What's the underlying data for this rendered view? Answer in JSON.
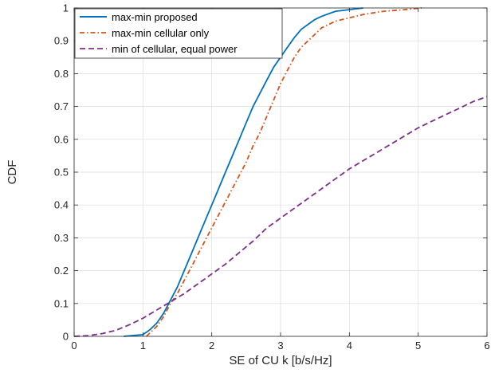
{
  "chart_data": {
    "type": "line",
    "title": "",
    "xlabel": "SE of CU k [b/s/Hz]",
    "ylabel": "CDF",
    "xlim": [
      0,
      6
    ],
    "ylim": [
      0,
      1
    ],
    "xticks": [
      0,
      1,
      2,
      3,
      4,
      5,
      6
    ],
    "yticks": [
      0,
      0.1,
      0.2,
      0.3,
      0.4,
      0.5,
      0.6,
      0.7,
      0.8,
      0.9,
      1
    ],
    "grid": true,
    "legend_position": "top-left",
    "series": [
      {
        "name": "max-min proposed",
        "color": "#0072BD",
        "style": "solid",
        "x": [
          0.72,
          1.0,
          1.1,
          1.2,
          1.3,
          1.4,
          1.5,
          1.6,
          1.7,
          1.8,
          1.9,
          2.0,
          2.1,
          2.2,
          2.3,
          2.4,
          2.5,
          2.6,
          2.7,
          2.8,
          2.9,
          3.0,
          3.1,
          3.2,
          3.3,
          3.4,
          3.5,
          3.6,
          3.8,
          4.0,
          4.2
        ],
        "y": [
          0.0,
          0.005,
          0.02,
          0.04,
          0.07,
          0.11,
          0.15,
          0.2,
          0.25,
          0.3,
          0.35,
          0.4,
          0.45,
          0.5,
          0.55,
          0.6,
          0.65,
          0.7,
          0.74,
          0.78,
          0.82,
          0.85,
          0.88,
          0.91,
          0.935,
          0.95,
          0.965,
          0.975,
          0.99,
          0.995,
          1.0
        ]
      },
      {
        "name": "max-min cellular only",
        "color": "#D95319",
        "style": "dashdot",
        "x": [
          1.05,
          1.1,
          1.2,
          1.3,
          1.4,
          1.5,
          1.6,
          1.7,
          1.8,
          1.9,
          2.0,
          2.1,
          2.2,
          2.3,
          2.4,
          2.5,
          2.6,
          2.7,
          2.8,
          2.9,
          3.0,
          3.1,
          3.2,
          3.3,
          3.4,
          3.5,
          3.6,
          3.8,
          4.0,
          4.2,
          4.5,
          4.8,
          5.05
        ],
        "y": [
          0.0,
          0.01,
          0.03,
          0.06,
          0.1,
          0.13,
          0.17,
          0.21,
          0.25,
          0.29,
          0.33,
          0.37,
          0.41,
          0.45,
          0.49,
          0.53,
          0.58,
          0.62,
          0.67,
          0.72,
          0.77,
          0.81,
          0.85,
          0.88,
          0.9,
          0.92,
          0.94,
          0.96,
          0.97,
          0.98,
          0.99,
          0.995,
          1.0
        ]
      },
      {
        "name": "min of cellular, equal power",
        "color": "#7E2F8E",
        "style": "dashed",
        "x": [
          0.0,
          0.2,
          0.4,
          0.6,
          0.8,
          1.0,
          1.2,
          1.4,
          1.6,
          1.8,
          2.0,
          2.2,
          2.4,
          2.6,
          2.8,
          3.0,
          3.2,
          3.4,
          3.6,
          3.8,
          4.0,
          4.2,
          4.4,
          4.6,
          4.8,
          5.0,
          5.2,
          5.4,
          5.6,
          5.8,
          6.0
        ],
        "y": [
          0.0,
          0.002,
          0.008,
          0.018,
          0.035,
          0.055,
          0.08,
          0.105,
          0.13,
          0.16,
          0.19,
          0.22,
          0.255,
          0.29,
          0.33,
          0.36,
          0.39,
          0.42,
          0.45,
          0.48,
          0.51,
          0.535,
          0.56,
          0.585,
          0.61,
          0.635,
          0.655,
          0.675,
          0.695,
          0.715,
          0.73
        ]
      }
    ]
  }
}
